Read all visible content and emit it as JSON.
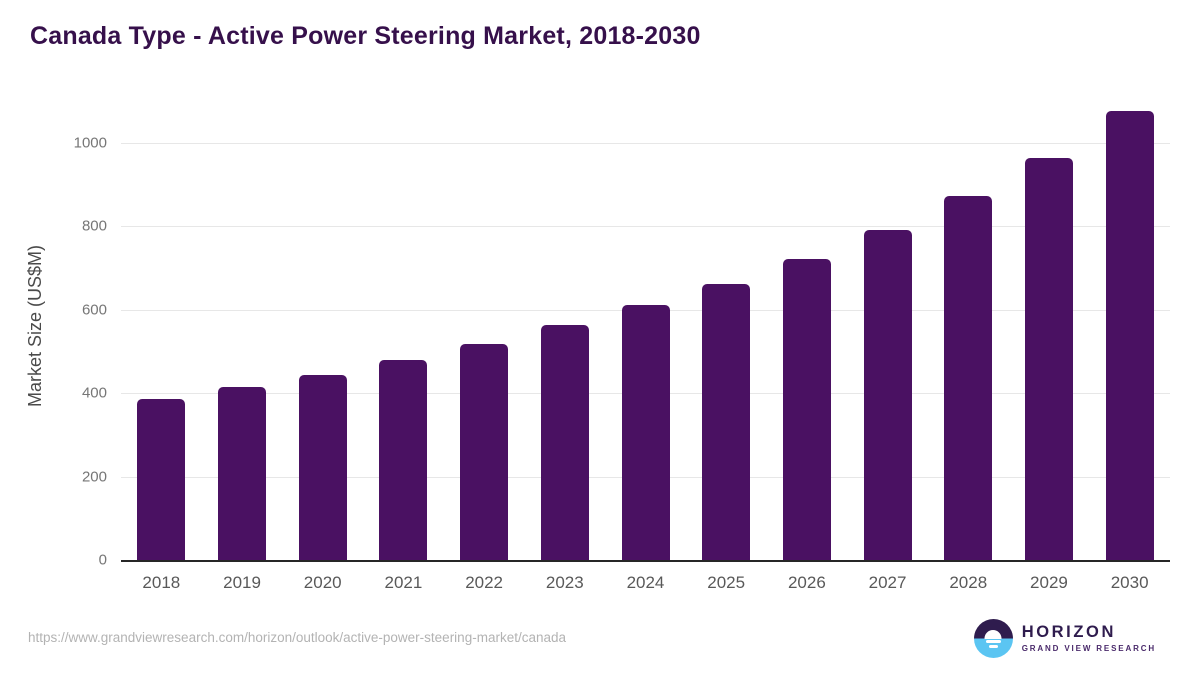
{
  "header": {
    "title": "Canada Type - Active Power Steering Market, 2018-2030"
  },
  "chart_data": {
    "type": "bar",
    "title": "Canada Type - Active Power Steering Market, 2018-2030",
    "xlabel": "",
    "ylabel": "Market Size (US$M)",
    "categories": [
      "2018",
      "2019",
      "2020",
      "2021",
      "2022",
      "2023",
      "2024",
      "2025",
      "2026",
      "2027",
      "2028",
      "2029",
      "2030"
    ],
    "values": [
      385,
      415,
      444,
      479,
      518,
      564,
      611,
      663,
      722,
      791,
      872,
      965,
      1076
    ],
    "ylim": [
      0,
      1120
    ],
    "yticks": [
      0,
      200,
      400,
      600,
      800,
      1000
    ],
    "grid": "horizontal",
    "legend": "none",
    "bar_color": "#4a1162"
  },
  "footer": {
    "source_url": "https://www.grandviewresearch.com/horizon/outlook/active-power-steering-market/canada",
    "logo": {
      "brand": "HORIZON",
      "subtitle": "GRAND VIEW RESEARCH"
    }
  },
  "colors": {
    "bar": "#4a1162",
    "title": "#36104b",
    "logo_dark": "#2f1c4e",
    "logo_blue": "#5bc5f2",
    "axis_line": "#262626",
    "gridline": "#e7e7e7"
  }
}
